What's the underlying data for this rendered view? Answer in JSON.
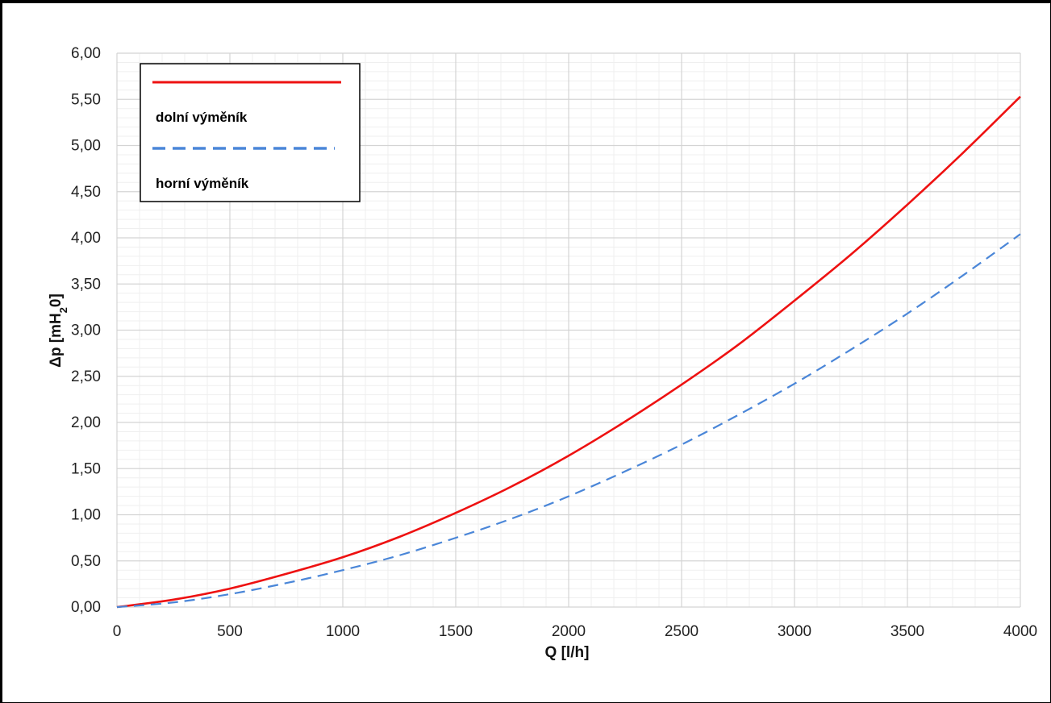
{
  "chart_data": {
    "type": "line",
    "xlabel": "Q [l/h]",
    "ylabel": {
      "main": "Δp [mH",
      "sub": "2",
      "tail": "0]"
    },
    "xlim": [
      0,
      4000
    ],
    "ylim": [
      0,
      6
    ],
    "x_ticks": [
      0,
      500,
      1000,
      1500,
      2000,
      2500,
      3000,
      3500,
      4000
    ],
    "x_tick_labels": [
      "0",
      "500",
      "1000",
      "1500",
      "2000",
      "2500",
      "3000",
      "3500",
      "4000"
    ],
    "y_ticks": [
      0,
      0.5,
      1,
      1.5,
      2,
      2.5,
      3,
      3.5,
      4,
      4.5,
      5,
      5.5,
      6
    ],
    "y_tick_labels": [
      "0,00",
      "0,50",
      "1,00",
      "1,50",
      "2,00",
      "2,50",
      "3,00",
      "3,50",
      "4,00",
      "4,50",
      "5,00",
      "5,50",
      "6,00"
    ],
    "grid": true,
    "legend_position": "top-left",
    "series": [
      {
        "name": "dolní výměník",
        "color": "#ee1111",
        "style": "solid",
        "x": [
          0,
          250,
          500,
          750,
          1000,
          1250,
          1500,
          1750,
          2000,
          2250,
          2500,
          2750,
          3000,
          3250,
          3500,
          3750,
          4000
        ],
        "values": [
          0,
          0.08,
          0.2,
          0.36,
          0.54,
          0.76,
          1.02,
          1.31,
          1.64,
          2.01,
          2.41,
          2.84,
          3.32,
          3.82,
          4.36,
          4.93,
          5.53
        ]
      },
      {
        "name": "horní výměník",
        "color": "#4a86d8",
        "style": "dashed",
        "x": [
          0,
          250,
          500,
          750,
          1000,
          1250,
          1500,
          1750,
          2000,
          2250,
          2500,
          2750,
          3000,
          3250,
          3500,
          3750,
          4000
        ],
        "values": [
          0,
          0.05,
          0.14,
          0.26,
          0.4,
          0.56,
          0.75,
          0.96,
          1.2,
          1.47,
          1.76,
          2.08,
          2.42,
          2.79,
          3.18,
          3.6,
          4.04
        ]
      }
    ]
  }
}
